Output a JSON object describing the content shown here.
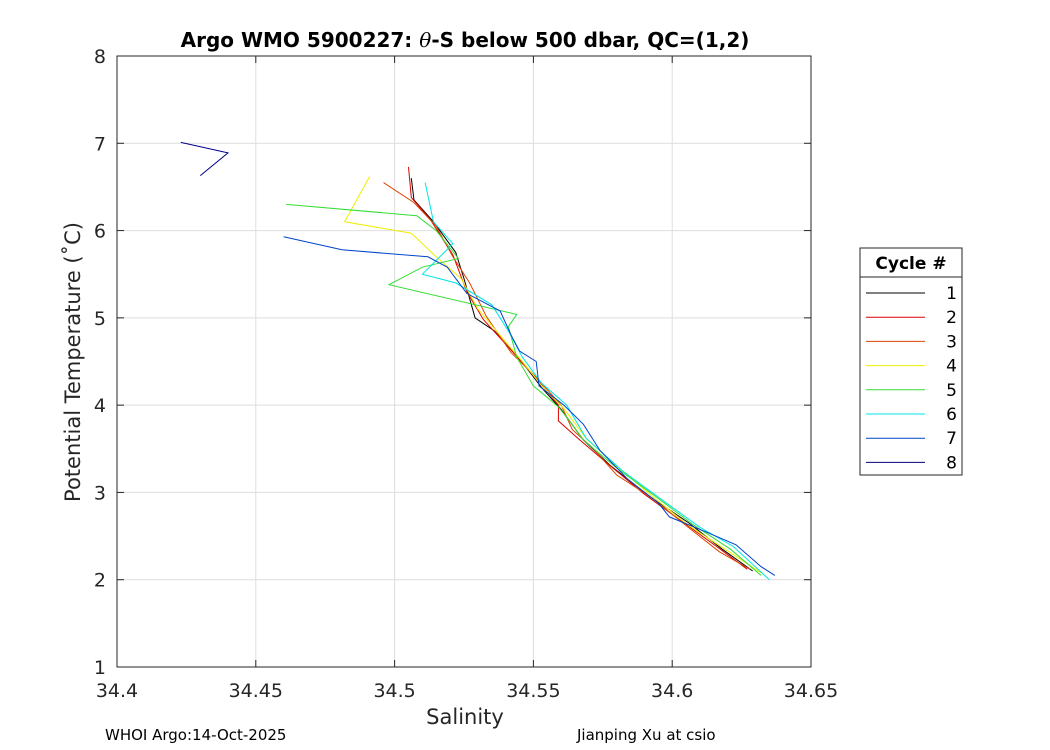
{
  "footer": {
    "left": "WHOI Argo:14-Oct-2025",
    "right": "Jianping Xu at csio"
  },
  "chart_data": {
    "type": "line",
    "title_prefix": "Argo WMO 5900227: ",
    "title_theta": "θ",
    "title_suffix": "-S below 500 dbar,  QC=(1,2)",
    "xlabel": "Salinity",
    "ylabel": "Potential Temperature (˚C)",
    "xlim": [
      34.4,
      34.65
    ],
    "ylim": [
      1,
      8
    ],
    "xticks": [
      34.4,
      34.45,
      34.5,
      34.55,
      34.6,
      34.65
    ],
    "xtick_labels": [
      "34.4",
      "34.45",
      "34.5",
      "34.55",
      "34.6",
      "34.65"
    ],
    "yticks": [
      1,
      2,
      3,
      4,
      5,
      6,
      7,
      8
    ],
    "ytick_labels": [
      "1",
      "2",
      "3",
      "4",
      "5",
      "6",
      "7",
      "8"
    ],
    "grid": true,
    "legend_title": "Cycle #",
    "legend_position": "right",
    "series": [
      {
        "name": "1",
        "color": "#000000",
        "points": [
          [
            34.506,
            6.6
          ],
          [
            34.507,
            6.35
          ],
          [
            34.514,
            6.1
          ],
          [
            34.522,
            5.75
          ],
          [
            34.525,
            5.45
          ],
          [
            34.529,
            5.0
          ],
          [
            34.536,
            4.85
          ],
          [
            34.547,
            4.45
          ],
          [
            34.553,
            4.2
          ],
          [
            34.56,
            3.95
          ],
          [
            34.568,
            3.6
          ],
          [
            34.578,
            3.3
          ],
          [
            34.592,
            2.95
          ],
          [
            34.606,
            2.65
          ],
          [
            34.618,
            2.35
          ],
          [
            34.629,
            2.1
          ]
        ]
      },
      {
        "name": "2",
        "color": "#dd0000",
        "points": [
          [
            34.505,
            6.73
          ],
          [
            34.506,
            6.38
          ],
          [
            34.513,
            6.12
          ],
          [
            34.521,
            5.72
          ],
          [
            34.526,
            5.3
          ],
          [
            34.532,
            4.98
          ],
          [
            34.54,
            4.7
          ],
          [
            34.548,
            4.42
          ],
          [
            34.559,
            4.0
          ],
          [
            34.559,
            3.82
          ],
          [
            34.566,
            3.62
          ],
          [
            34.576,
            3.35
          ],
          [
            34.59,
            2.98
          ],
          [
            34.603,
            2.68
          ],
          [
            34.616,
            2.38
          ],
          [
            34.627,
            2.12
          ]
        ]
      },
      {
        "name": "3",
        "color": "#dd4400",
        "points": [
          [
            34.496,
            6.55
          ],
          [
            34.507,
            6.32
          ],
          [
            34.515,
            6.05
          ],
          [
            34.521,
            5.7
          ],
          [
            34.527,
            5.4
          ],
          [
            34.533,
            5.02
          ],
          [
            34.542,
            4.6
          ],
          [
            34.551,
            4.32
          ],
          [
            34.56,
            4.0
          ],
          [
            34.564,
            3.72
          ],
          [
            34.571,
            3.52
          ],
          [
            34.58,
            3.2
          ],
          [
            34.593,
            2.93
          ],
          [
            34.605,
            2.62
          ],
          [
            34.617,
            2.32
          ],
          [
            34.628,
            2.12
          ]
        ]
      },
      {
        "name": "4",
        "color": "#eeee00",
        "points": [
          [
            34.491,
            6.62
          ],
          [
            34.482,
            6.1
          ],
          [
            34.506,
            5.97
          ],
          [
            34.515,
            5.7
          ],
          [
            34.524,
            5.45
          ],
          [
            34.53,
            5.1
          ],
          [
            34.538,
            4.8
          ],
          [
            34.546,
            4.5
          ],
          [
            34.553,
            4.22
          ],
          [
            34.561,
            3.96
          ],
          [
            34.569,
            3.62
          ],
          [
            34.58,
            3.3
          ],
          [
            34.593,
            2.95
          ],
          [
            34.606,
            2.62
          ],
          [
            34.619,
            2.35
          ],
          [
            34.632,
            2.08
          ]
        ]
      },
      {
        "name": "5",
        "color": "#33dd33",
        "points": [
          [
            34.461,
            6.3
          ],
          [
            34.508,
            6.17
          ],
          [
            34.515,
            6.0
          ],
          [
            34.523,
            5.68
          ],
          [
            34.51,
            5.58
          ],
          [
            34.498,
            5.38
          ],
          [
            34.544,
            5.04
          ],
          [
            34.541,
            4.9
          ],
          [
            34.544,
            4.55
          ],
          [
            34.55,
            4.22
          ],
          [
            34.559,
            3.98
          ],
          [
            34.563,
            3.82
          ],
          [
            34.568,
            3.6
          ],
          [
            34.58,
            3.28
          ],
          [
            34.595,
            2.93
          ],
          [
            34.608,
            2.62
          ],
          [
            34.621,
            2.35
          ],
          [
            34.632,
            2.05
          ]
        ]
      },
      {
        "name": "6",
        "color": "#00e5e5",
        "points": [
          [
            34.511,
            6.55
          ],
          [
            34.514,
            6.1
          ],
          [
            34.521,
            5.85
          ],
          [
            34.51,
            5.5
          ],
          [
            34.522,
            5.4
          ],
          [
            34.535,
            5.15
          ],
          [
            34.541,
            4.85
          ],
          [
            34.546,
            4.55
          ],
          [
            34.553,
            4.25
          ],
          [
            34.562,
            4.0
          ],
          [
            34.569,
            3.62
          ],
          [
            34.582,
            3.25
          ],
          [
            34.597,
            2.9
          ],
          [
            34.61,
            2.6
          ],
          [
            34.622,
            2.38
          ],
          [
            34.635,
            2.0
          ]
        ]
      },
      {
        "name": "7",
        "color": "#0044cc",
        "points": [
          [
            34.46,
            5.93
          ],
          [
            34.481,
            5.78
          ],
          [
            34.512,
            5.7
          ],
          [
            34.519,
            5.58
          ],
          [
            34.526,
            5.28
          ],
          [
            34.538,
            5.08
          ],
          [
            34.542,
            4.8
          ],
          [
            34.545,
            4.62
          ],
          [
            34.551,
            4.5
          ],
          [
            34.552,
            4.22
          ],
          [
            34.561,
            4.0
          ],
          [
            34.568,
            3.78
          ],
          [
            34.574,
            3.48
          ],
          [
            34.584,
            3.15
          ],
          [
            34.595,
            2.88
          ],
          [
            34.599,
            2.72
          ],
          [
            34.612,
            2.55
          ],
          [
            34.623,
            2.4
          ],
          [
            34.632,
            2.15
          ],
          [
            34.637,
            2.05
          ]
        ]
      },
      {
        "name": "8",
        "color": "#000088",
        "points": [
          [
            34.423,
            7.01
          ],
          [
            34.44,
            6.89
          ],
          [
            34.43,
            6.63
          ]
        ]
      }
    ]
  }
}
